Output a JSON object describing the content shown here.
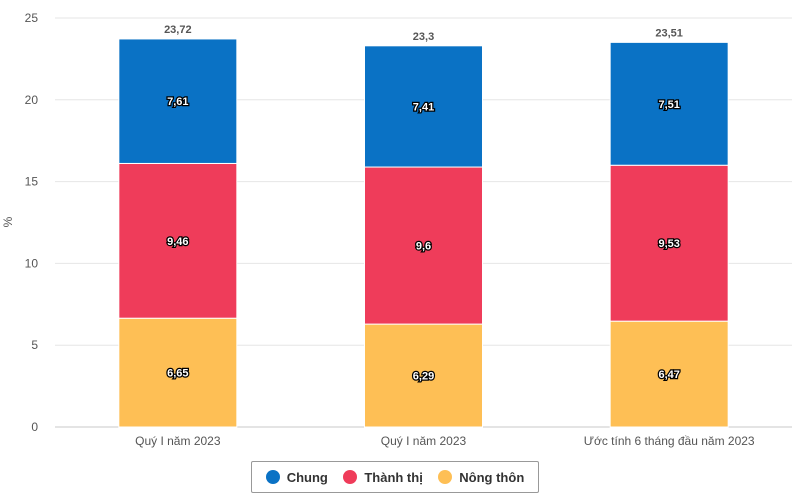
{
  "chart_data": {
    "type": "bar",
    "stacked": true,
    "categories": [
      "Quý I năm 2023",
      "Quý I năm 2023",
      "Ước tính 6 tháng đầu năm 2023"
    ],
    "series": [
      {
        "name": "Nông thôn",
        "color": "#FEBF55",
        "values": [
          6.65,
          6.29,
          6.47
        ],
        "labels": [
          "6,65",
          "6,29",
          "6,47"
        ]
      },
      {
        "name": "Thành thị",
        "color": "#EF3C5A",
        "values": [
          9.46,
          9.6,
          9.53
        ],
        "labels": [
          "9,46",
          "9,6",
          "9,53"
        ]
      },
      {
        "name": "Chung",
        "color": "#0A72C5",
        "values": [
          7.61,
          7.41,
          7.51
        ],
        "labels": [
          "7,61",
          "7,41",
          "7,51"
        ]
      }
    ],
    "totals": [
      23.72,
      23.3,
      23.51
    ],
    "total_labels": [
      "23,72",
      "23,3",
      "23,51"
    ],
    "ylabel": "%",
    "ylim": [
      0,
      25
    ],
    "yticks": [
      0,
      5,
      10,
      15,
      20,
      25
    ],
    "grid": true,
    "legend_position": "bottom-center",
    "legend_order": [
      "Chung",
      "Thành thị",
      "Nông thôn"
    ]
  }
}
